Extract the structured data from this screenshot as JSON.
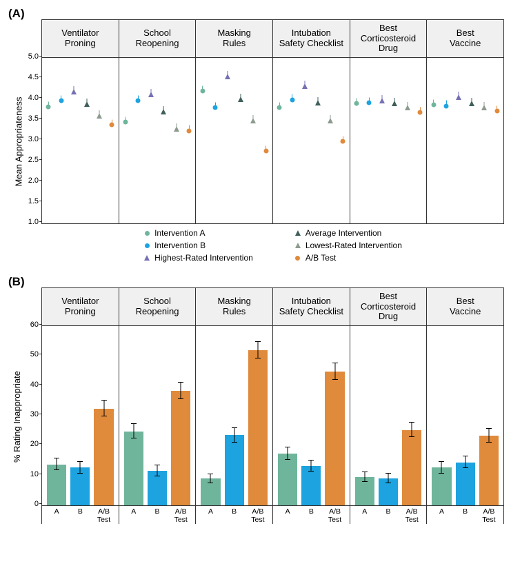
{
  "background_color": "#ffffff",
  "grid_color": "#666666",
  "facet_header_bg": "#f0f0f0",
  "font_family": "Arial",
  "fontsize_axis_label": 13,
  "fontsize_facet_title": 13,
  "fontsize_tick": 11,
  "fontsize_legend": 12,
  "fontsize_panel_label": 17,
  "scenarios": [
    "Ventilator Proning",
    "School Reopening",
    "Masking Rules",
    "Intubation Safety Checklist",
    "Best Corticosteroid Drug",
    "Best Vaccine"
  ],
  "series": [
    {
      "key": "intA",
      "label": "Intervention A",
      "color": "#6fb59b",
      "shape": "circle"
    },
    {
      "key": "intB",
      "label": "Intervention B",
      "color": "#1ca3e0",
      "shape": "circle"
    },
    {
      "key": "highest",
      "label": "Highest-Rated Intervention",
      "color": "#7570b3",
      "shape": "triangle"
    },
    {
      "key": "average",
      "label": "Average Intervention",
      "color": "#3f5f5a",
      "shape": "triangle"
    },
    {
      "key": "lowest",
      "label": "Lowest-Rated Intervention",
      "color": "#8d9a8f",
      "shape": "triangle"
    },
    {
      "key": "ab",
      "label": "A/B Test",
      "color": "#e08a3c",
      "shape": "circle"
    }
  ],
  "panelA": {
    "label": "(A)",
    "ylabel": "Mean Appropriateness",
    "ylim": [
      1.0,
      5.0
    ],
    "ytick_step": 0.5,
    "marker_size": 7,
    "err_halfwidth": 0.07,
    "data": {
      "Ventilator Proning": {
        "intA": 3.82,
        "intB": 3.97,
        "highest": 4.18,
        "average": 3.88,
        "lowest": 3.6,
        "ab": 3.38
      },
      "School Reopening": {
        "intA": 3.45,
        "intB": 3.96,
        "highest": 4.12,
        "average": 3.7,
        "lowest": 3.28,
        "ab": 3.24
      },
      "Masking Rules": {
        "intA": 4.2,
        "intB": 3.8,
        "highest": 4.55,
        "average": 4.0,
        "lowest": 3.48,
        "ab": 2.75
      },
      "Intubation Safety Checklist": {
        "intA": 3.8,
        "intB": 3.99,
        "highest": 4.32,
        "average": 3.92,
        "lowest": 3.48,
        "ab": 2.98
      },
      "Best Corticosteroid Drug": {
        "intA": 3.9,
        "intB": 3.92,
        "highest": 3.96,
        "average": 3.9,
        "lowest": 3.8,
        "ab": 3.68
      },
      "Best Vaccine": {
        "intA": 3.86,
        "intB": 3.84,
        "highest": 4.05,
        "average": 3.9,
        "lowest": 3.8,
        "ab": 3.72
      }
    }
  },
  "panelB": {
    "label": "(B)",
    "ylabel": "% Rating Inappropriate",
    "ylim": [
      0,
      60
    ],
    "ytick_step": 10,
    "bar_keys": [
      "intA",
      "intB",
      "ab"
    ],
    "bar_labels": [
      "A",
      "B",
      "A/B\nTest"
    ],
    "bar_colors": {
      "intA": "#6fb59b",
      "intB": "#1ca3e0",
      "ab": "#e08a3c"
    },
    "bar_width_rel": 0.8,
    "data": {
      "Ventilator Proning": {
        "intA": {
          "v": 13.7,
          "e": 2.0
        },
        "intB": {
          "v": 12.6,
          "e": 1.9
        },
        "ab": {
          "v": 32.4,
          "e": 2.6
        }
      },
      "School Reopening": {
        "intA": {
          "v": 24.8,
          "e": 2.4
        },
        "intB": {
          "v": 11.5,
          "e": 1.8
        },
        "ab": {
          "v": 38.3,
          "e": 2.7
        }
      },
      "Masking Rules": {
        "intA": {
          "v": 8.9,
          "e": 1.6
        },
        "intB": {
          "v": 23.5,
          "e": 2.4
        },
        "ab": {
          "v": 52.0,
          "e": 2.8
        }
      },
      "Intubation Safety Checklist": {
        "intA": {
          "v": 17.3,
          "e": 2.1
        },
        "intB": {
          "v": 13.2,
          "e": 1.9
        },
        "ab": {
          "v": 44.7,
          "e": 2.8
        }
      },
      "Best Corticosteroid Drug": {
        "intA": {
          "v": 9.4,
          "e": 1.6
        },
        "intB": {
          "v": 9.0,
          "e": 1.6
        },
        "ab": {
          "v": 25.2,
          "e": 2.4
        }
      },
      "Best Vaccine": {
        "intA": {
          "v": 12.6,
          "e": 1.9
        },
        "intB": {
          "v": 14.4,
          "e": 2.0
        },
        "ab": {
          "v": 23.3,
          "e": 2.4
        }
      }
    }
  }
}
